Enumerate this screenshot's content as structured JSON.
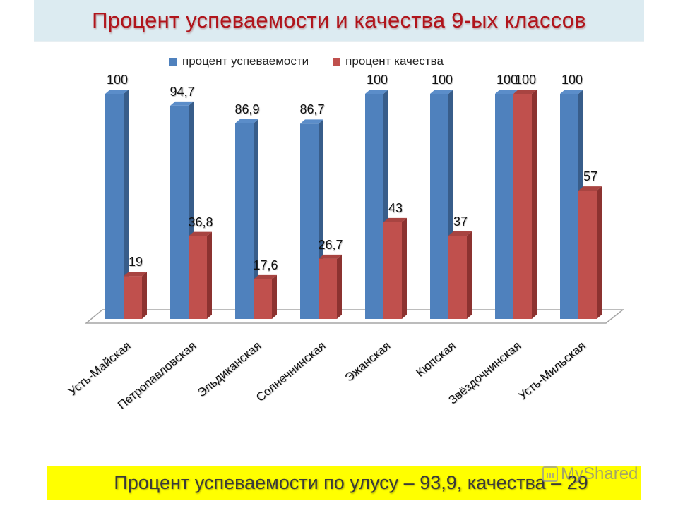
{
  "slide": {
    "title": "Процент успеваемости и качества 9-ых классов",
    "footer": "Процент успеваемости по улусу – 93,9, качества – 29",
    "watermark": "MyShared"
  },
  "colors": {
    "title_bg": "#dcebf1",
    "title_text": "#b0141b",
    "series_progress": "#4f81bd",
    "series_progress_side": "#385d8a",
    "series_quality": "#c0504d",
    "series_quality_side": "#8c3230",
    "footer_bg": "#ffff00"
  },
  "chart_data": {
    "type": "bar",
    "title": "Процент успеваемости и качества 9-ых классов",
    "xlabel": "",
    "ylabel": "",
    "ylim": [
      0,
      100
    ],
    "grid": false,
    "legend_position": "top",
    "style": "3d-clustered-column",
    "categories": [
      "Усть-Майская",
      "Петропавловская",
      "Эльдиканская",
      "Солнечнинская",
      "Эжанская",
      "Кюпская",
      "Звёздочнинская",
      "Усть-Мильская"
    ],
    "series": [
      {
        "name": "процент успеваемости",
        "values": [
          100,
          94.7,
          86.9,
          86.7,
          100,
          100,
          100,
          100
        ],
        "labels": [
          "100",
          "94,7",
          "86,9",
          "86,7",
          "100",
          "100",
          "100",
          "100"
        ]
      },
      {
        "name": "процент качества",
        "values": [
          19,
          36.8,
          17.6,
          26.7,
          43,
          37,
          100,
          57
        ],
        "labels": [
          "19",
          "36,8",
          "17,6",
          "26,7",
          "43",
          "37",
          "100",
          "57"
        ]
      }
    ],
    "annotations": [
      "Процент успеваемости по улусу – 93,9, качества – 29"
    ]
  }
}
